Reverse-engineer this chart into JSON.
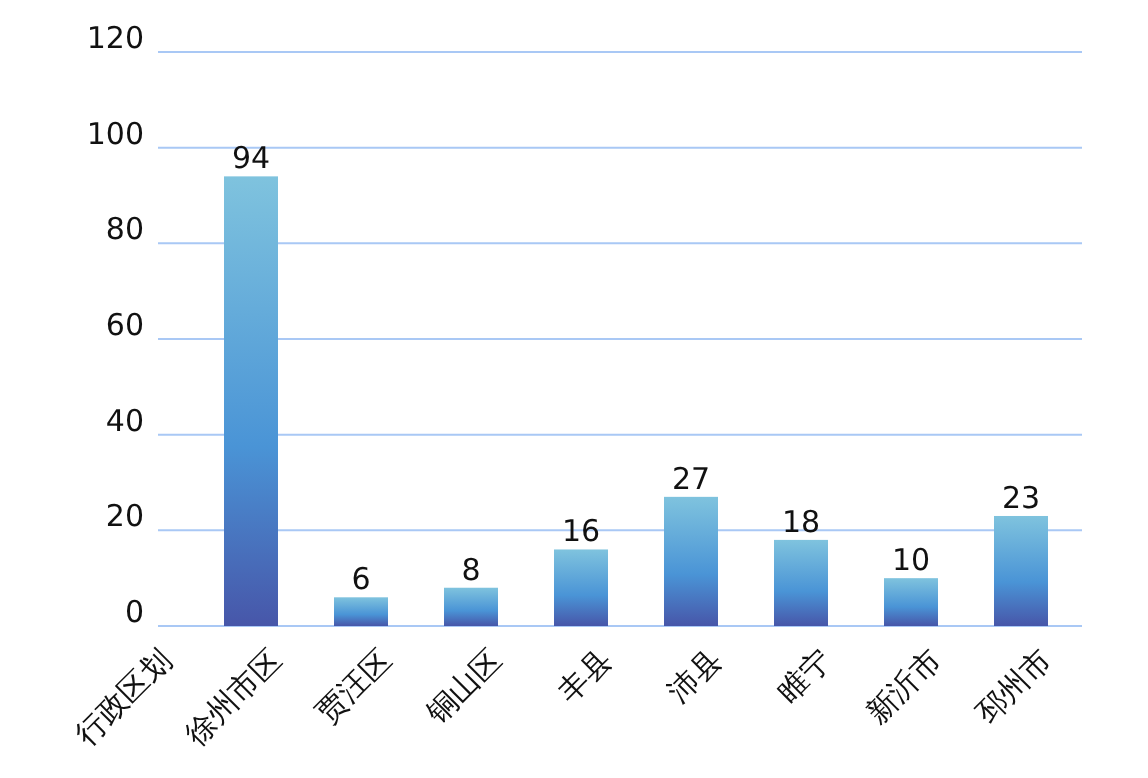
{
  "chart_data": {
    "type": "bar",
    "categories": [
      "行政区划",
      "徐州市区",
      "贾汪区",
      "铜山区",
      "丰县",
      "沛县",
      "睢宁",
      "新沂市",
      "邳州市"
    ],
    "series": [
      {
        "color": "#4a94d6",
        "values": [
          null,
          94,
          6,
          8,
          16,
          27,
          18,
          10,
          23
        ]
      }
    ],
    "ylim": [
      0,
      120
    ],
    "yticks": [
      0,
      20,
      40,
      60,
      80,
      100,
      120
    ],
    "grid": "y",
    "data_labels": true
  }
}
